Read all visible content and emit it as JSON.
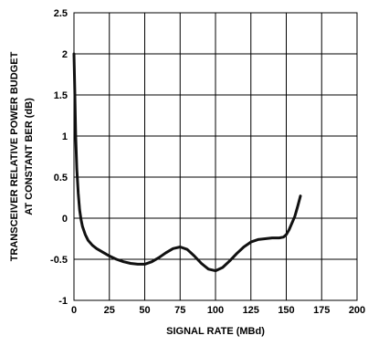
{
  "chart_data": {
    "type": "line",
    "xlabel": "SIGNAL RATE (MBd)",
    "ylabel_lines": [
      "TRANSCEIVER RELATIVE POWER BUDGET",
      "AT CONSTANT BER (dB)"
    ],
    "xlim": [
      0,
      200
    ],
    "ylim": [
      -1,
      2.5
    ],
    "x_ticks": [
      0,
      25,
      50,
      75,
      100,
      125,
      150,
      175,
      200
    ],
    "x_tick_labels": [
      "0",
      "25",
      "50",
      "75",
      "100",
      "125",
      "150",
      "175",
      "200"
    ],
    "y_ticks": [
      -1,
      -0.5,
      0,
      0.5,
      1,
      1.5,
      2,
      2.5
    ],
    "y_tick_labels": [
      "-1",
      "-0.5",
      "0",
      "0.5",
      "1",
      "1.5",
      "2",
      "2.5"
    ],
    "grid": true,
    "series": [
      {
        "color": "#111111",
        "x": [
          0,
          0.6,
          1.2,
          2,
          3,
          4,
          5,
          6,
          8,
          10,
          13,
          16,
          20,
          25,
          30,
          35,
          40,
          45,
          50,
          55,
          60,
          65,
          70,
          75,
          80,
          85,
          90,
          95,
          100,
          105,
          110,
          115,
          120,
          125,
          130,
          135,
          140,
          145,
          148,
          150,
          152,
          154,
          156,
          158,
          160
        ],
        "y": [
          2.0,
          1.55,
          1.0,
          0.6,
          0.3,
          0.1,
          -0.02,
          -0.1,
          -0.2,
          -0.27,
          -0.33,
          -0.37,
          -0.41,
          -0.46,
          -0.5,
          -0.53,
          -0.55,
          -0.56,
          -0.56,
          -0.53,
          -0.48,
          -0.42,
          -0.37,
          -0.35,
          -0.38,
          -0.46,
          -0.55,
          -0.62,
          -0.64,
          -0.6,
          -0.52,
          -0.43,
          -0.35,
          -0.29,
          -0.26,
          -0.25,
          -0.24,
          -0.24,
          -0.23,
          -0.2,
          -0.14,
          -0.06,
          0.02,
          0.14,
          0.27
        ]
      }
    ]
  }
}
